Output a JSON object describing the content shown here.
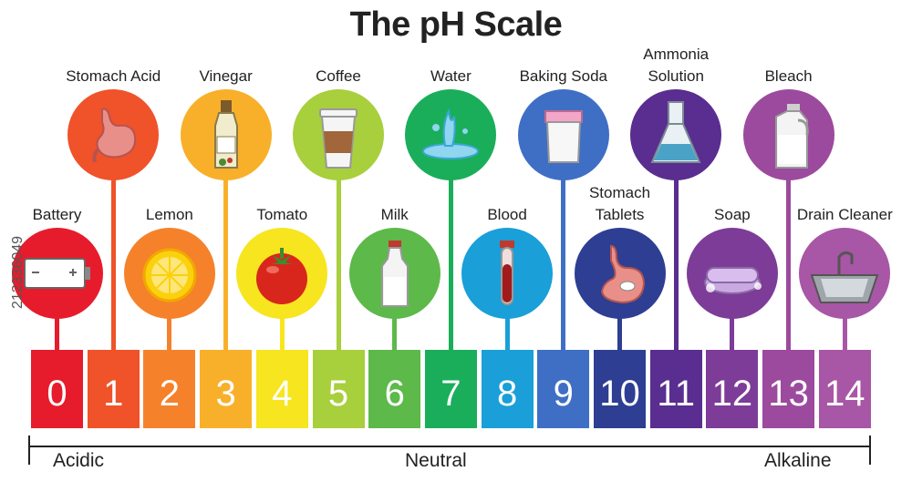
{
  "title": "The pH Scale",
  "scale": [
    {
      "ph": "0",
      "color": "#e61c2c",
      "label": [
        "Battery"
      ],
      "icon": "battery-icon",
      "row": "low"
    },
    {
      "ph": "1",
      "color": "#f0522a",
      "label": [
        "Stomach Acid"
      ],
      "icon": "stomach-icon",
      "row": "high"
    },
    {
      "ph": "2",
      "color": "#f5822b",
      "label": [
        "Lemon"
      ],
      "icon": "lemon-icon",
      "row": "low"
    },
    {
      "ph": "3",
      "color": "#f8b02a",
      "label": [
        "Vinegar"
      ],
      "icon": "vinegar-icon",
      "row": "high"
    },
    {
      "ph": "4",
      "color": "#f7e51f",
      "label": [
        "Tomato"
      ],
      "icon": "tomato-icon",
      "row": "low"
    },
    {
      "ph": "5",
      "color": "#a8cf3c",
      "label": [
        "Coffee"
      ],
      "icon": "coffee-cup-icon",
      "row": "high"
    },
    {
      "ph": "6",
      "color": "#5cb94a",
      "label": [
        "Milk"
      ],
      "icon": "milk-bottle-icon",
      "row": "low"
    },
    {
      "ph": "7",
      "color": "#1aae5a",
      "label": [
        "Water"
      ],
      "icon": "water-splash-icon",
      "row": "high"
    },
    {
      "ph": "8",
      "color": "#1a9fd8",
      "label": [
        "Blood"
      ],
      "icon": "blood-tube-icon",
      "row": "low"
    },
    {
      "ph": "9",
      "color": "#3f6fc5",
      "label": [
        "Baking Soda"
      ],
      "icon": "baking-soda-icon",
      "row": "high"
    },
    {
      "ph": "10",
      "color": "#2e3e93",
      "label": [
        "Stomach",
        "Tablets"
      ],
      "icon": "stomach-tablet-icon",
      "row": "low"
    },
    {
      "ph": "11",
      "color": "#5a2d90",
      "label": [
        "Ammonia",
        "Solution"
      ],
      "icon": "flask-icon",
      "row": "high"
    },
    {
      "ph": "12",
      "color": "#7d3c98",
      "label": [
        "Soap"
      ],
      "icon": "soap-icon",
      "row": "low"
    },
    {
      "ph": "13",
      "color": "#9c4a9e",
      "label": [
        "Bleach"
      ],
      "icon": "bleach-jug-icon",
      "row": "high"
    },
    {
      "ph": "14",
      "color": "#a856a6",
      "label": [
        "Drain Cleaner"
      ],
      "icon": "sink-icon",
      "row": "low"
    }
  ],
  "axis": {
    "left": "Acidic",
    "center": "Neutral",
    "right": "Alkaline"
  },
  "watermark": "212336049"
}
